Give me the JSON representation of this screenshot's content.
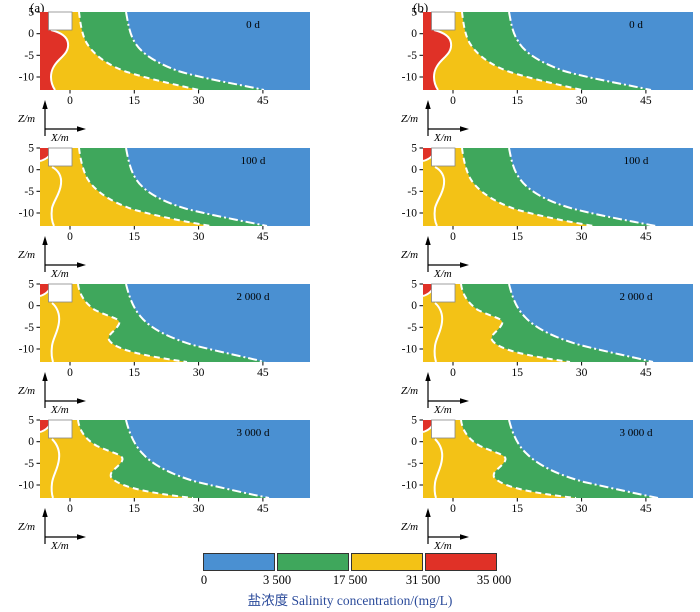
{
  "figure": {
    "panel_labels": [
      "(a)",
      "(b)"
    ],
    "time_labels": [
      "0 d",
      "100 d",
      "2 000 d",
      "3 000 d"
    ],
    "axes": {
      "x_label": "X/m",
      "z_label": "Z/m",
      "x_ticks": [
        "0",
        "15",
        "30",
        "45"
      ],
      "z_ticks": [
        "5",
        "0",
        "-5",
        "-10"
      ]
    },
    "colorbar": {
      "colors": [
        "#4a90d2",
        "#3fa75c",
        "#f3c216",
        "#e03127"
      ],
      "tick_labels": [
        "0",
        "3 500",
        "17 500",
        "31 500",
        "35 000"
      ],
      "caption": "盐浓度 Salinity concentration/(mg/L)",
      "caption_color": "#2a4a9a"
    },
    "line_colors": {
      "isoline": "#ffffff",
      "notch_border": "#888888"
    }
  },
  "chart_data": {
    "type": "heatmap",
    "title": "Salinity concentration cross-sections (盐浓度) at successive times",
    "layout": "2 columns (a, b) x 4 rows (time steps), shared colorbar at bottom",
    "x_axis": {
      "label": "X/m",
      "ticks": [
        0,
        15,
        30,
        45
      ],
      "range": [
        -7,
        55
      ]
    },
    "z_axis": {
      "label": "Z/m",
      "ticks": [
        5,
        0,
        -5,
        -10
      ],
      "range": [
        -13,
        5
      ]
    },
    "concentration_bands_mg_L": [
      {
        "min": 0,
        "max": 3500,
        "color": "#4a90d2",
        "position": "seaward / right side"
      },
      {
        "min": 3500,
        "max": 17500,
        "color": "#3fa75c",
        "position": "middle wedge"
      },
      {
        "min": 17500,
        "max": 31500,
        "color": "#f3c216",
        "position": "left band"
      },
      {
        "min": 31500,
        "max": 35000,
        "color": "#e03127",
        "position": "far left (shrinks with time)"
      }
    ],
    "isolines": [
      {
        "style": "solid white",
        "separates": "31500 / 17500 bands"
      },
      {
        "style": "dashed white",
        "separates": "17500 / 3500 bands"
      },
      {
        "style": "dash-dot white",
        "separates": "3500 / 0 bands"
      }
    ],
    "panels": [
      {
        "column": "a",
        "time_d": 0,
        "red_band": "full-depth strip at left, bulge to x≈0 near z≈-3",
        "green_blue_toe_x": 46
      },
      {
        "column": "a",
        "time_d": 100,
        "red_band": "small patch at top-left corner",
        "green_blue_toe_x": 50
      },
      {
        "column": "a",
        "time_d": 2000,
        "red_band": "small patch at top-left corner",
        "green_blue_toe_x": 46,
        "yellow_bulge": "points right to x≈12 near z≈-4"
      },
      {
        "column": "a",
        "time_d": 3000,
        "red_band": "small patch at top-left corner",
        "green_blue_toe_x": 48,
        "yellow_bulge": "points right to x≈13 near z≈-4"
      },
      {
        "column": "b",
        "time_d": 0,
        "red_band": "full-depth strip at left, bulge to x≈0 near z≈-3",
        "green_blue_toe_x": 47
      },
      {
        "column": "b",
        "time_d": 100,
        "red_band": "small patch at top-left corner",
        "green_blue_toe_x": 52
      },
      {
        "column": "b",
        "time_d": 2000,
        "red_band": "small patch at top-left corner",
        "green_blue_toe_x": 47,
        "yellow_bulge": "points right to x≈12 near z≈-4"
      },
      {
        "column": "b",
        "time_d": 3000,
        "red_band": "small patch at top-left corner",
        "green_blue_toe_x": 49,
        "yellow_bulge": "points right to x≈13 near z≈-4"
      }
    ],
    "legend_position": "bottom center",
    "legend_label": "盐浓度 Salinity concentration/(mg/L)"
  }
}
